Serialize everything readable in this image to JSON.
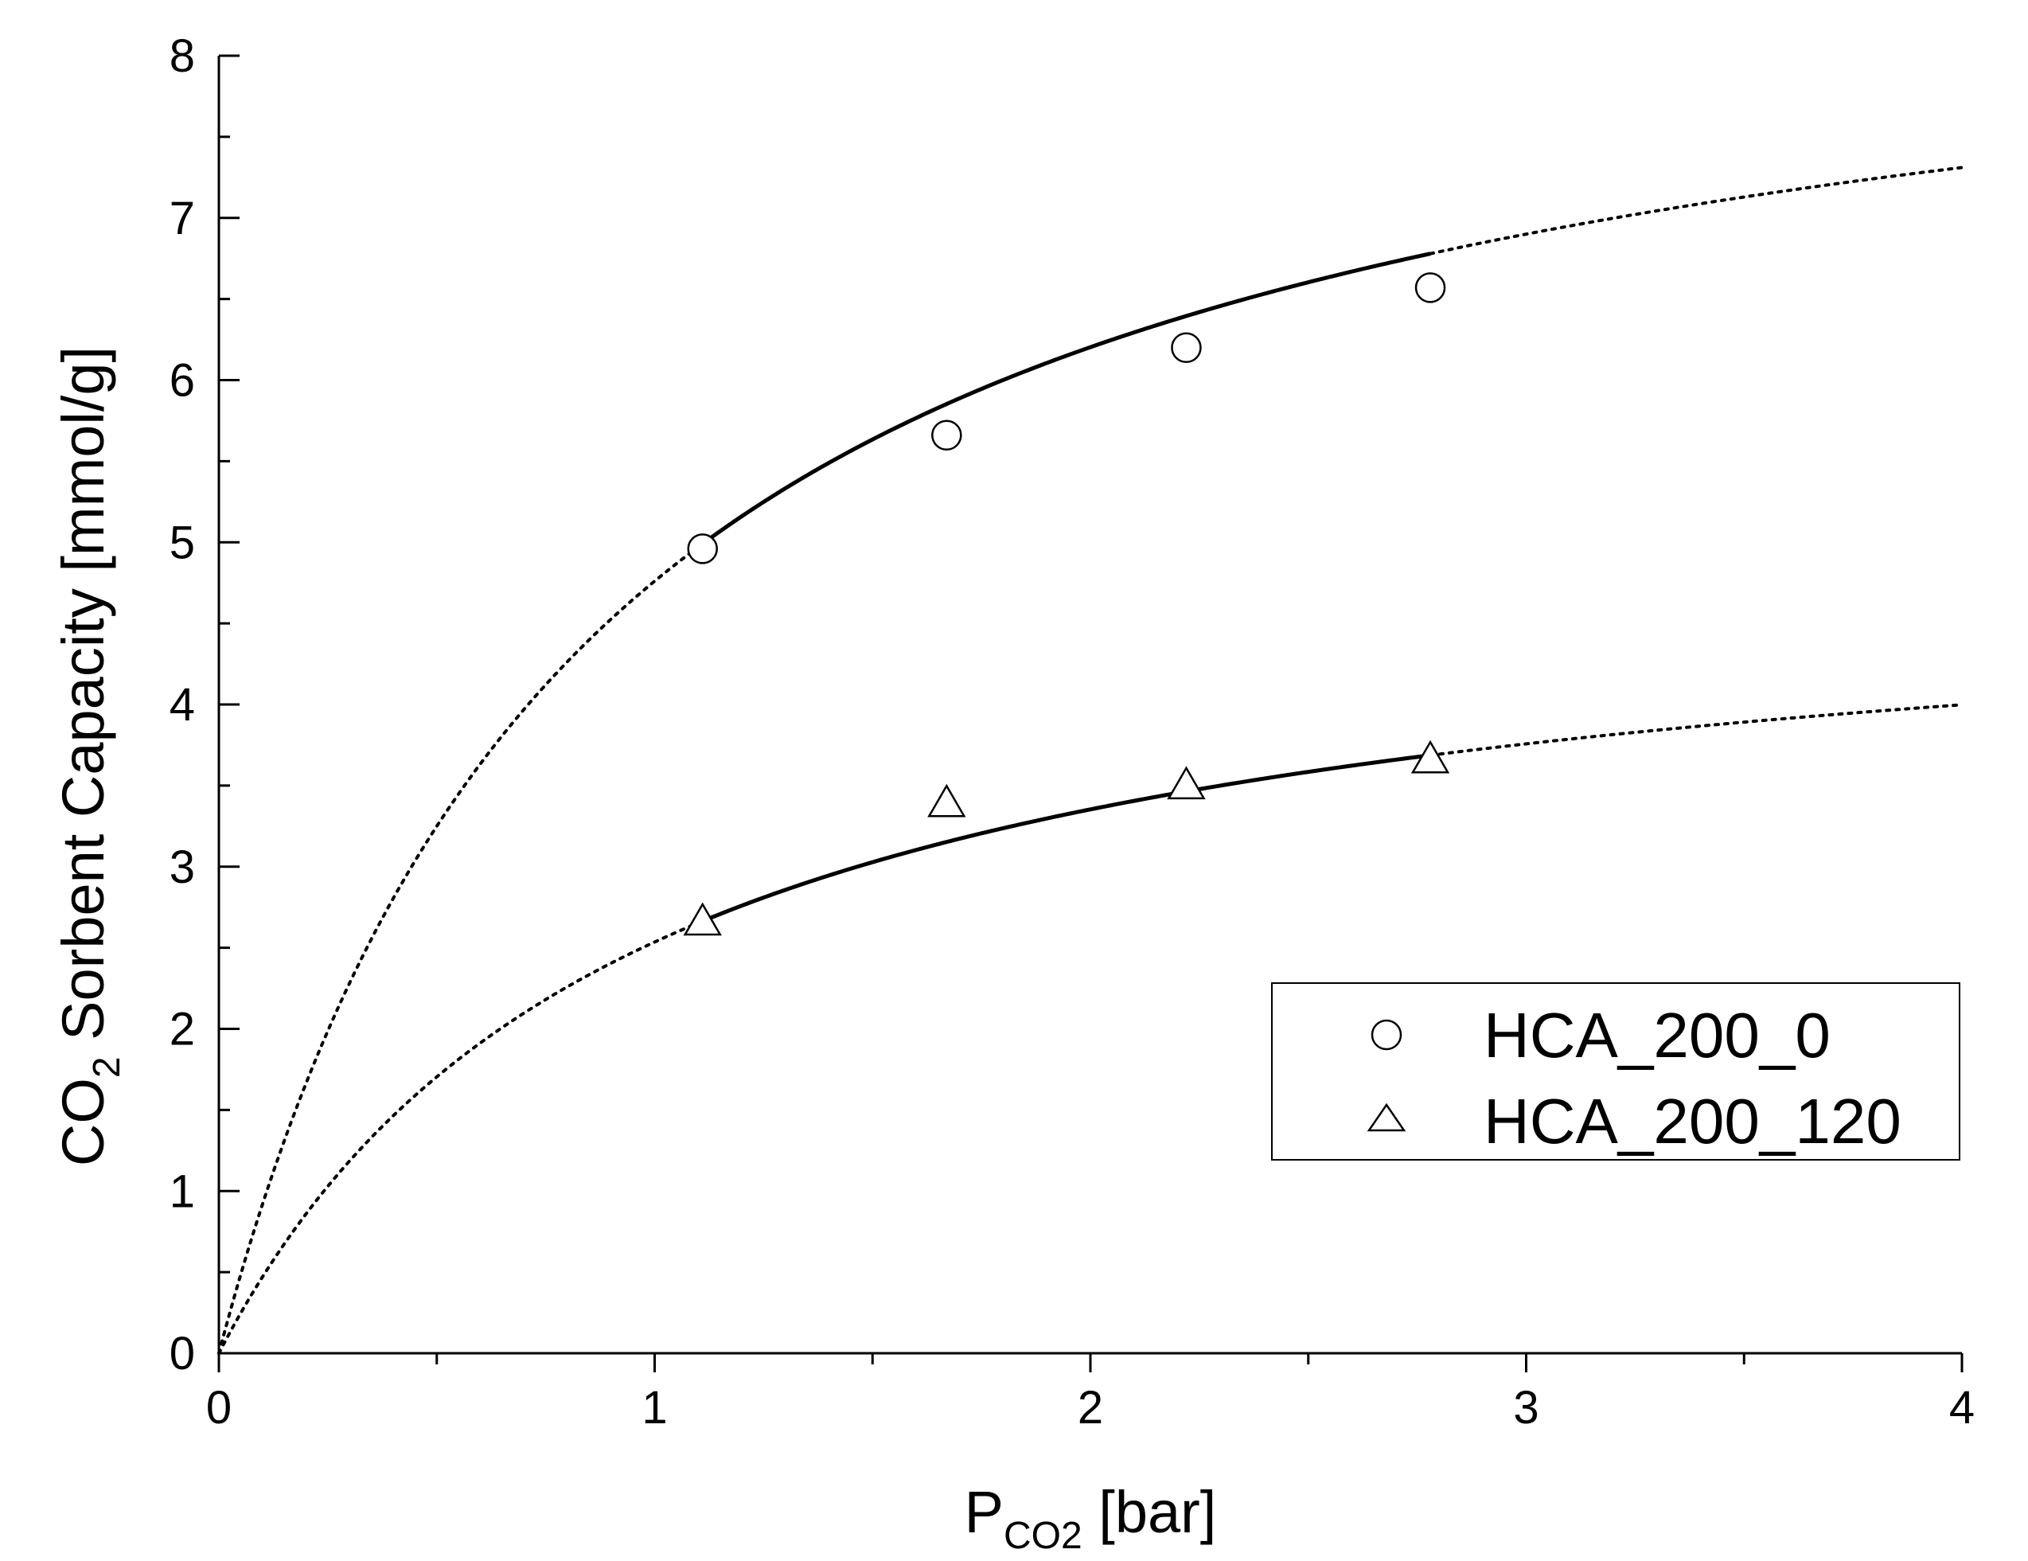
{
  "chart_data": {
    "type": "scatter",
    "xlabel": {
      "main": "P",
      "sub": "CO2",
      "unit": " [bar]"
    },
    "ylabel": {
      "pre": "CO",
      "sub": "2",
      "post": " Sorbent Capacity [mmol/g]"
    },
    "xlim": [
      0,
      4
    ],
    "ylim": [
      0,
      8
    ],
    "x_ticks": [
      "0",
      "1",
      "2",
      "3",
      "4"
    ],
    "y_ticks": [
      "0",
      "1",
      "2",
      "3",
      "4",
      "5",
      "6",
      "7",
      "8"
    ],
    "grid": false,
    "legend_position": "lower-right",
    "series": [
      {
        "name": "HCA_200_0",
        "marker": "circle",
        "x": [
          1.11,
          1.67,
          2.22,
          2.78
        ],
        "y": [
          4.96,
          5.66,
          6.2,
          6.57
        ],
        "fit": {
          "model": "langmuir",
          "qmax": 8.9,
          "b": 1.15,
          "solid_range": [
            1.11,
            2.78
          ],
          "dotted_range": [
            0,
            4
          ]
        }
      },
      {
        "name": "HCA_200_120",
        "marker": "triangle",
        "x": [
          1.11,
          1.67,
          2.22,
          2.78
        ],
        "y": [
          2.66,
          3.39,
          3.5,
          3.66
        ],
        "fit": {
          "model": "langmuir",
          "qmax": 4.95,
          "b": 1.05,
          "solid_range": [
            1.11,
            2.78
          ],
          "dotted_range": [
            0,
            4
          ]
        }
      }
    ]
  }
}
